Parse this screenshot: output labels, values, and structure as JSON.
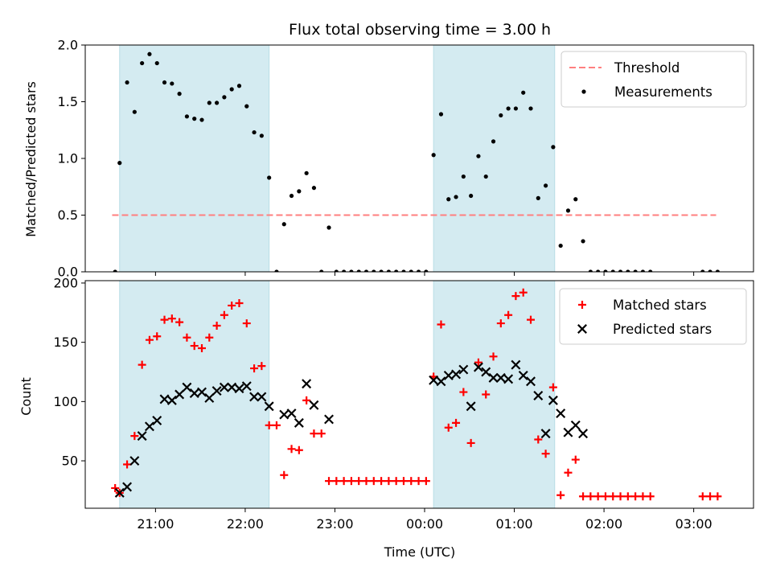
{
  "chart_data": [
    {
      "type": "scatter",
      "title": "Flux total observing time = 3.00 h",
      "ylabel": "Matched/Predicted stars",
      "ylim": [
        0,
        2.0
      ],
      "yticks": [
        0.0,
        0.5,
        1.0,
        1.5,
        2.0
      ],
      "ytick_labels": [
        "0.0",
        "0.5",
        "1.0",
        "1.5",
        "2.0"
      ],
      "x_range": [
        "20:13",
        "03:40"
      ],
      "shaded_intervals": [
        [
          "20:36",
          "22:16"
        ],
        [
          "00:06",
          "01:27"
        ]
      ],
      "shade_color": "#d4ebf1",
      "threshold": {
        "name": "Threshold",
        "value": 0.5,
        "x_start": "20:31",
        "x_end": "03:15",
        "color": "#ff7f7f"
      },
      "legend": {
        "placement": "upper right",
        "entries": [
          "Threshold",
          "Measurements"
        ]
      },
      "series": [
        {
          "name": "Measurements",
          "marker": "dot",
          "color": "#000000",
          "points": [
            [
              "20:33",
              0.0
            ],
            [
              "20:36",
              0.96
            ],
            [
              "20:41",
              1.67
            ],
            [
              "20:46",
              1.41
            ],
            [
              "20:51",
              1.84
            ],
            [
              "20:56",
              1.92
            ],
            [
              "21:01",
              1.84
            ],
            [
              "21:06",
              1.67
            ],
            [
              "21:11",
              1.66
            ],
            [
              "21:16",
              1.57
            ],
            [
              "21:21",
              1.37
            ],
            [
              "21:26",
              1.35
            ],
            [
              "21:31",
              1.34
            ],
            [
              "21:36",
              1.49
            ],
            [
              "21:41",
              1.49
            ],
            [
              "21:46",
              1.54
            ],
            [
              "21:51",
              1.61
            ],
            [
              "21:56",
              1.64
            ],
            [
              "22:01",
              1.46
            ],
            [
              "22:06",
              1.23
            ],
            [
              "22:11",
              1.2
            ],
            [
              "22:16",
              0.83
            ],
            [
              "22:21",
              0.0
            ],
            [
              "22:26",
              0.42
            ],
            [
              "22:31",
              0.67
            ],
            [
              "22:36",
              0.71
            ],
            [
              "22:41",
              0.87
            ],
            [
              "22:46",
              0.74
            ],
            [
              "22:51",
              0.0
            ],
            [
              "22:56",
              0.39
            ],
            [
              "23:01",
              0.0
            ],
            [
              "23:06",
              0.0
            ],
            [
              "23:11",
              0.0
            ],
            [
              "23:16",
              0.0
            ],
            [
              "23:21",
              0.0
            ],
            [
              "23:26",
              0.0
            ],
            [
              "23:31",
              0.0
            ],
            [
              "23:36",
              0.0
            ],
            [
              "23:41",
              0.0
            ],
            [
              "23:46",
              0.0
            ],
            [
              "23:51",
              0.0
            ],
            [
              "23:56",
              0.0
            ],
            [
              "00:01",
              0.0
            ],
            [
              "00:06",
              1.03
            ],
            [
              "00:11",
              1.39
            ],
            [
              "00:16",
              0.64
            ],
            [
              "00:21",
              0.66
            ],
            [
              "00:26",
              0.84
            ],
            [
              "00:31",
              0.67
            ],
            [
              "00:36",
              1.02
            ],
            [
              "00:41",
              0.84
            ],
            [
              "00:46",
              1.15
            ],
            [
              "00:51",
              1.38
            ],
            [
              "00:56",
              1.44
            ],
            [
              "01:01",
              1.44
            ],
            [
              "01:06",
              1.58
            ],
            [
              "01:11",
              1.44
            ],
            [
              "01:16",
              0.65
            ],
            [
              "01:21",
              0.76
            ],
            [
              "01:26",
              1.1
            ],
            [
              "01:31",
              0.23
            ],
            [
              "01:36",
              0.54
            ],
            [
              "01:41",
              0.64
            ],
            [
              "01:46",
              0.27
            ],
            [
              "01:51",
              0.0
            ],
            [
              "01:56",
              0.0
            ],
            [
              "02:01",
              0.0
            ],
            [
              "02:06",
              0.0
            ],
            [
              "02:11",
              0.0
            ],
            [
              "02:16",
              0.0
            ],
            [
              "02:21",
              0.0
            ],
            [
              "02:26",
              0.0
            ],
            [
              "02:31",
              0.0
            ],
            [
              "03:06",
              0.0
            ],
            [
              "03:11",
              0.0
            ],
            [
              "03:16",
              0.0
            ]
          ]
        }
      ]
    },
    {
      "type": "scatter",
      "xlabel": "Time (UTC)",
      "ylabel": "Count",
      "ylim": [
        10,
        202
      ],
      "yticks": [
        50,
        100,
        150,
        200
      ],
      "ytick_labels": [
        "50",
        "100",
        "150",
        "200"
      ],
      "xticks": [
        "21:00",
        "22:00",
        "23:00",
        "00:00",
        "01:00",
        "02:00",
        "03:00"
      ],
      "xtick_labels": [
        "21:00",
        "22:00",
        "23:00",
        "00:00",
        "01:00",
        "02:00",
        "03:00"
      ],
      "legend": {
        "placement": "upper right",
        "entries": [
          "Matched stars",
          "Predicted stars"
        ]
      },
      "series": [
        {
          "name": "Matched stars",
          "marker": "plus",
          "color": "#ff0000",
          "points": [
            [
              "20:33",
              27
            ],
            [
              "20:36",
              23
            ],
            [
              "20:41",
              47
            ],
            [
              "20:46",
              71
            ],
            [
              "20:51",
              131
            ],
            [
              "20:56",
              152
            ],
            [
              "21:01",
              155
            ],
            [
              "21:06",
              169
            ],
            [
              "21:11",
              170
            ],
            [
              "21:16",
              167
            ],
            [
              "21:21",
              154
            ],
            [
              "21:26",
              147
            ],
            [
              "21:31",
              145
            ],
            [
              "21:36",
              154
            ],
            [
              "21:41",
              164
            ],
            [
              "21:46",
              173
            ],
            [
              "21:51",
              181
            ],
            [
              "21:56",
              183
            ],
            [
              "22:01",
              166
            ],
            [
              "22:06",
              128
            ],
            [
              "22:11",
              130
            ],
            [
              "22:16",
              80
            ],
            [
              "22:21",
              80
            ],
            [
              "22:26",
              38
            ],
            [
              "22:31",
              60
            ],
            [
              "22:36",
              59
            ],
            [
              "22:41",
              101
            ],
            [
              "22:46",
              73
            ],
            [
              "22:51",
              73
            ],
            [
              "22:56",
              33
            ],
            [
              "23:01",
              33
            ],
            [
              "23:06",
              33
            ],
            [
              "23:11",
              33
            ],
            [
              "23:16",
              33
            ],
            [
              "23:21",
              33
            ],
            [
              "23:26",
              33
            ],
            [
              "23:31",
              33
            ],
            [
              "23:36",
              33
            ],
            [
              "23:41",
              33
            ],
            [
              "23:46",
              33
            ],
            [
              "23:51",
              33
            ],
            [
              "23:56",
              33
            ],
            [
              "00:01",
              33
            ],
            [
              "00:06",
              121
            ],
            [
              "00:11",
              165
            ],
            [
              "00:16",
              78
            ],
            [
              "00:21",
              82
            ],
            [
              "00:26",
              108
            ],
            [
              "00:31",
              65
            ],
            [
              "00:36",
              133
            ],
            [
              "00:41",
              106
            ],
            [
              "00:46",
              138
            ],
            [
              "00:51",
              166
            ],
            [
              "00:56",
              173
            ],
            [
              "01:01",
              189
            ],
            [
              "01:06",
              192
            ],
            [
              "01:11",
              169
            ],
            [
              "01:16",
              68
            ],
            [
              "01:21",
              56
            ],
            [
              "01:26",
              112
            ],
            [
              "01:31",
              21
            ],
            [
              "01:36",
              40
            ],
            [
              "01:41",
              51
            ],
            [
              "01:46",
              20
            ],
            [
              "01:51",
              20
            ],
            [
              "01:56",
              20
            ],
            [
              "02:01",
              20
            ],
            [
              "02:06",
              20
            ],
            [
              "02:11",
              20
            ],
            [
              "02:16",
              20
            ],
            [
              "02:21",
              20
            ],
            [
              "02:26",
              20
            ],
            [
              "02:31",
              20
            ],
            [
              "03:06",
              20
            ],
            [
              "03:11",
              20
            ],
            [
              "03:16",
              20
            ]
          ]
        },
        {
          "name": "Predicted stars",
          "marker": "x",
          "color": "#000000",
          "points": [
            [
              "20:36",
              23
            ],
            [
              "20:41",
              28
            ],
            [
              "20:46",
              50
            ],
            [
              "20:51",
              71
            ],
            [
              "20:56",
              79
            ],
            [
              "21:01",
              84
            ],
            [
              "21:06",
              102
            ],
            [
              "21:11",
              101
            ],
            [
              "21:16",
              106
            ],
            [
              "21:21",
              112
            ],
            [
              "21:26",
              107
            ],
            [
              "21:31",
              108
            ],
            [
              "21:36",
              103
            ],
            [
              "21:41",
              109
            ],
            [
              "21:46",
              112
            ],
            [
              "21:51",
              112
            ],
            [
              "21:56",
              111
            ],
            [
              "22:01",
              113
            ],
            [
              "22:06",
              104
            ],
            [
              "22:11",
              104
            ],
            [
              "22:16",
              96
            ],
            [
              "22:26",
              89
            ],
            [
              "22:31",
              90
            ],
            [
              "22:36",
              82
            ],
            [
              "22:41",
              115
            ],
            [
              "22:46",
              97
            ],
            [
              "22:56",
              85
            ],
            [
              "00:06",
              118
            ],
            [
              "00:11",
              117
            ],
            [
              "00:16",
              122
            ],
            [
              "00:21",
              123
            ],
            [
              "00:26",
              127
            ],
            [
              "00:31",
              96
            ],
            [
              "00:36",
              129
            ],
            [
              "00:41",
              125
            ],
            [
              "00:46",
              120
            ],
            [
              "00:51",
              120
            ],
            [
              "00:56",
              119
            ],
            [
              "01:01",
              131
            ],
            [
              "01:06",
              122
            ],
            [
              "01:11",
              117
            ],
            [
              "01:16",
              105
            ],
            [
              "01:21",
              73
            ],
            [
              "01:26",
              101
            ],
            [
              "01:31",
              90
            ],
            [
              "01:36",
              74
            ],
            [
              "01:41",
              80
            ],
            [
              "01:46",
              73
            ]
          ]
        }
      ]
    }
  ]
}
